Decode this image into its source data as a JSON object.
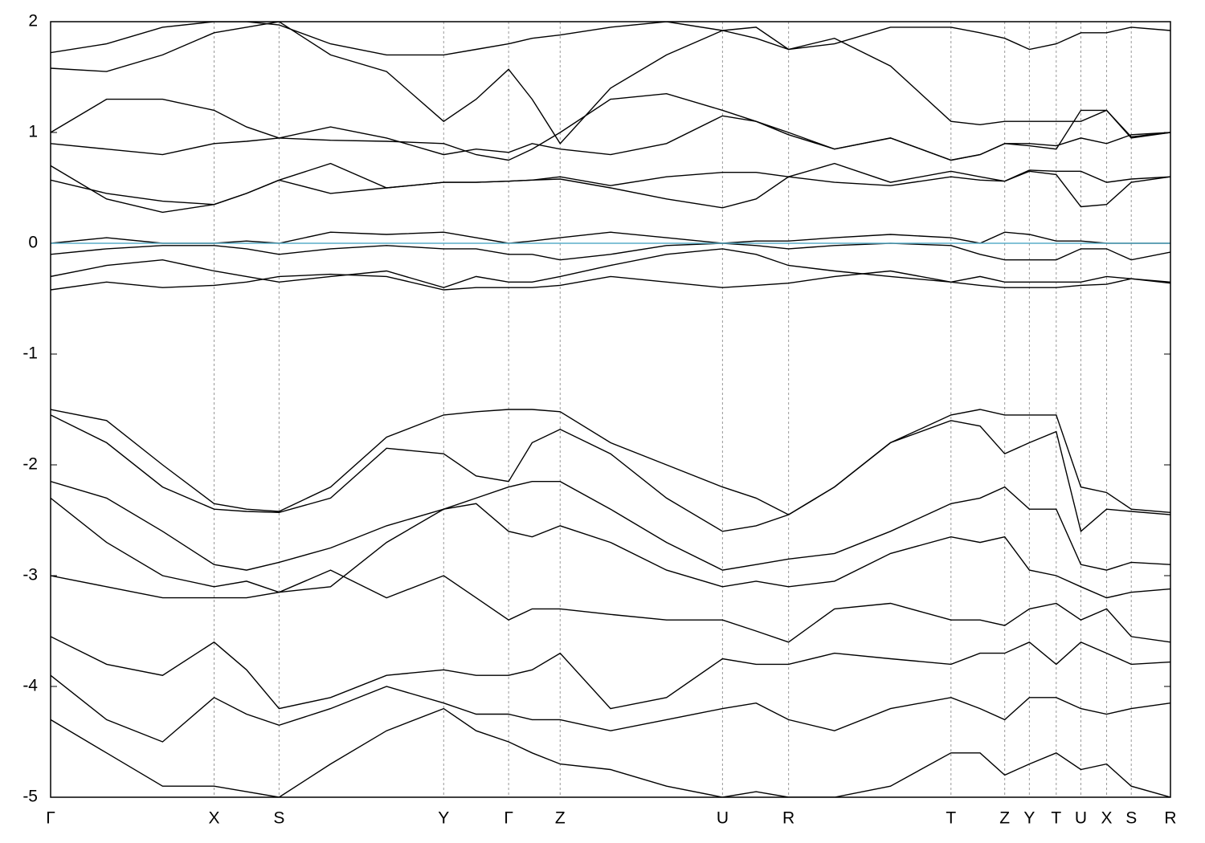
{
  "chart_data": {
    "type": "line",
    "xlim": [
      0,
      1
    ],
    "ylim": [
      -5,
      2
    ],
    "yticks": [
      2,
      1,
      0,
      -1,
      -2,
      -3,
      -4,
      -5
    ],
    "xticks": [
      {
        "value": 0,
        "label": "Γ"
      },
      {
        "value": 0.146,
        "label": "X"
      },
      {
        "value": 0.204,
        "label": "S"
      },
      {
        "value": 0.351,
        "label": "Y"
      },
      {
        "value": 0.409,
        "label": "Γ"
      },
      {
        "value": 0.455,
        "label": "Z"
      },
      {
        "value": 0.6,
        "label": "U"
      },
      {
        "value": 0.659,
        "label": "R"
      },
      {
        "value": 0.804,
        "label": "T"
      },
      {
        "value": 0.852,
        "label": "Z"
      },
      {
        "value": 0.874,
        "label": "Y"
      },
      {
        "value": 0.898,
        "label": "T"
      },
      {
        "value": 0.92,
        "label": "U"
      },
      {
        "value": 0.943,
        "label": "X"
      },
      {
        "value": 0.965,
        "label": "S"
      },
      {
        "value": 1,
        "label": "R"
      }
    ],
    "grid": true,
    "reference_line": {
      "value": 0,
      "color": "#5aaec8"
    },
    "x": [
      0,
      0.05,
      0.1,
      0.146,
      0.175,
      0.204,
      0.25,
      0.3,
      0.351,
      0.38,
      0.409,
      0.43,
      0.455,
      0.5,
      0.55,
      0.6,
      0.63,
      0.659,
      0.7,
      0.75,
      0.804,
      0.83,
      0.852,
      0.874,
      0.898,
      0.92,
      0.943,
      0.965,
      1
    ],
    "series": [
      {
        "color": "#000000",
        "values": [
          0.57,
          0.45,
          0.38,
          0.35,
          0.45,
          0.57,
          0.72,
          0.5,
          0.55,
          0.55,
          0.56,
          0.57,
          0.6,
          0.52,
          0.6,
          0.64,
          0.64,
          0.6,
          0.55,
          0.52,
          0.6,
          0.57,
          0.56,
          0.65,
          0.62,
          0.33,
          0.35,
          0.55,
          0.6
        ]
      },
      {
        "color": "#000000",
        "values": [
          0.7,
          0.4,
          0.28,
          0.35,
          0.45,
          0.57,
          0.45,
          0.5,
          0.55,
          0.55,
          0.56,
          0.57,
          0.58,
          0.5,
          0.4,
          0.32,
          0.4,
          0.6,
          0.72,
          0.55,
          0.65,
          0.6,
          0.56,
          0.66,
          0.65,
          0.65,
          0.55,
          0.58,
          0.6
        ]
      },
      {
        "color": "#000000",
        "values": [
          0.9,
          0.85,
          0.8,
          0.9,
          0.92,
          0.95,
          1.05,
          0.95,
          0.8,
          0.85,
          0.82,
          0.9,
          0.85,
          0.8,
          0.9,
          1.15,
          1.1,
          1.0,
          0.85,
          0.95,
          0.75,
          0.8,
          0.9,
          0.9,
          0.88,
          0.95,
          0.9,
          0.98,
          1.0
        ]
      },
      {
        "color": "#000000",
        "values": [
          1.0,
          1.3,
          1.3,
          1.2,
          1.05,
          0.95,
          0.93,
          0.92,
          0.9,
          0.8,
          0.75,
          0.85,
          1.0,
          1.3,
          1.35,
          1.2,
          1.1,
          0.98,
          0.85,
          0.95,
          0.75,
          0.8,
          0.9,
          0.88,
          0.85,
          1.2,
          1.2,
          0.96,
          1.0
        ]
      },
      {
        "color": "#000000",
        "values": [
          1.58,
          1.55,
          1.7,
          1.9,
          1.95,
          2.0,
          1.7,
          1.55,
          1.1,
          1.3,
          1.57,
          1.3,
          0.9,
          1.4,
          1.7,
          1.92,
          1.85,
          1.75,
          1.85,
          1.6,
          1.1,
          1.07,
          1.1,
          1.1,
          1.1,
          1.1,
          1.2,
          0.95,
          1.0
        ]
      },
      {
        "color": "#000000",
        "values": [
          1.72,
          1.8,
          1.95,
          2.0,
          2.0,
          1.97,
          1.8,
          1.7,
          1.7,
          1.75,
          1.8,
          1.85,
          1.88,
          1.95,
          2.0,
          1.92,
          1.95,
          1.75,
          1.8,
          1.95,
          1.95,
          1.9,
          1.85,
          1.75,
          1.8,
          1.9,
          1.9,
          1.95,
          1.92
        ]
      },
      {
        "color": "#000000",
        "values": [
          0.0,
          0.05,
          0.0,
          0.0,
          0.02,
          0.0,
          0.1,
          0.08,
          0.1,
          0.05,
          0.0,
          0.02,
          0.05,
          0.1,
          0.05,
          0.0,
          0.02,
          0.02,
          0.05,
          0.08,
          0.05,
          0.0,
          0.1,
          0.08,
          0.02,
          0.02,
          0.0,
          0.0,
          0.0
        ]
      },
      {
        "color": "#000000",
        "values": [
          -0.1,
          -0.05,
          -0.02,
          -0.02,
          -0.05,
          -0.1,
          -0.05,
          -0.02,
          -0.05,
          -0.05,
          -0.1,
          -0.1,
          -0.15,
          -0.1,
          -0.02,
          0.0,
          -0.02,
          -0.05,
          -0.02,
          0.0,
          -0.02,
          -0.1,
          -0.15,
          -0.15,
          -0.15,
          -0.05,
          -0.05,
          -0.15,
          -0.08
        ]
      },
      {
        "color": "#000000",
        "values": [
          -0.3,
          -0.2,
          -0.15,
          -0.25,
          -0.3,
          -0.35,
          -0.3,
          -0.25,
          -0.4,
          -0.3,
          -0.35,
          -0.35,
          -0.3,
          -0.2,
          -0.1,
          -0.05,
          -0.1,
          -0.2,
          -0.25,
          -0.3,
          -0.35,
          -0.3,
          -0.35,
          -0.35,
          -0.35,
          -0.35,
          -0.3,
          -0.32,
          -0.35
        ]
      },
      {
        "color": "#000000",
        "values": [
          -0.42,
          -0.35,
          -0.4,
          -0.38,
          -0.35,
          -0.3,
          -0.28,
          -0.3,
          -0.42,
          -0.4,
          -0.4,
          -0.4,
          -0.38,
          -0.3,
          -0.35,
          -0.4,
          -0.38,
          -0.36,
          -0.3,
          -0.25,
          -0.35,
          -0.38,
          -0.4,
          -0.4,
          -0.4,
          -0.38,
          -0.37,
          -0.32,
          -0.36
        ]
      },
      {
        "color": "#000000",
        "values": [
          -1.5,
          -1.6,
          -2.0,
          -2.35,
          -2.4,
          -2.42,
          -2.2,
          -1.75,
          -1.55,
          -1.52,
          -1.5,
          -1.5,
          -1.52,
          -1.8,
          -2.0,
          -2.2,
          -2.3,
          -2.45,
          -2.2,
          -1.8,
          -1.55,
          -1.5,
          -1.55,
          -1.55,
          -1.55,
          -2.2,
          -2.25,
          -2.4,
          -2.43
        ]
      },
      {
        "color": "#000000",
        "values": [
          -1.55,
          -1.8,
          -2.2,
          -2.4,
          -2.42,
          -2.43,
          -2.3,
          -1.85,
          -1.9,
          -2.1,
          -2.15,
          -1.8,
          -1.68,
          -1.9,
          -2.3,
          -2.6,
          -2.55,
          -2.45,
          -2.2,
          -1.8,
          -1.6,
          -1.65,
          -1.9,
          -1.8,
          -1.7,
          -2.6,
          -2.4,
          -2.42,
          -2.45
        ]
      },
      {
        "color": "#000000",
        "values": [
          -2.15,
          -2.3,
          -2.6,
          -2.9,
          -2.95,
          -2.88,
          -2.75,
          -2.55,
          -2.4,
          -2.3,
          -2.2,
          -2.15,
          -2.15,
          -2.4,
          -2.7,
          -2.95,
          -2.9,
          -2.85,
          -2.8,
          -2.6,
          -2.35,
          -2.3,
          -2.2,
          -2.4,
          -2.4,
          -2.9,
          -2.95,
          -2.88,
          -2.9
        ]
      },
      {
        "color": "#000000",
        "values": [
          -2.3,
          -2.7,
          -3.0,
          -3.1,
          -3.05,
          -3.15,
          -3.1,
          -2.7,
          -2.4,
          -2.35,
          -2.6,
          -2.65,
          -2.55,
          -2.7,
          -2.95,
          -3.1,
          -3.05,
          -3.1,
          -3.05,
          -2.8,
          -2.65,
          -2.7,
          -2.65,
          -2.95,
          -3.0,
          -3.1,
          -3.2,
          -3.15,
          -3.12
        ]
      },
      {
        "color": "#000000",
        "values": [
          -3.0,
          -3.1,
          -3.2,
          -3.2,
          -3.2,
          -3.15,
          -2.95,
          -3.2,
          -3.0,
          -3.2,
          -3.4,
          -3.3,
          -3.3,
          -3.35,
          -3.4,
          -3.4,
          -3.5,
          -3.6,
          -3.3,
          -3.25,
          -3.4,
          -3.4,
          -3.45,
          -3.3,
          -3.25,
          -3.4,
          -3.3,
          -3.55,
          -3.6
        ]
      },
      {
        "color": "#000000",
        "values": [
          -3.55,
          -3.8,
          -3.9,
          -3.6,
          -3.85,
          -4.2,
          -4.1,
          -3.9,
          -3.85,
          -3.9,
          -3.9,
          -3.85,
          -3.7,
          -4.2,
          -4.1,
          -3.75,
          -3.8,
          -3.8,
          -3.7,
          -3.75,
          -3.8,
          -3.7,
          -3.7,
          -3.6,
          -3.8,
          -3.6,
          -3.7,
          -3.8,
          -3.78
        ]
      },
      {
        "color": "#000000",
        "values": [
          -3.9,
          -4.3,
          -4.5,
          -4.1,
          -4.25,
          -4.35,
          -4.2,
          -4.0,
          -4.15,
          -4.25,
          -4.25,
          -4.3,
          -4.3,
          -4.4,
          -4.3,
          -4.2,
          -4.15,
          -4.3,
          -4.4,
          -4.2,
          -4.1,
          -4.2,
          -4.3,
          -4.1,
          -4.1,
          -4.2,
          -4.25,
          -4.2,
          -4.15
        ]
      },
      {
        "color": "#000000",
        "values": [
          -4.3,
          -4.6,
          -4.9,
          -4.9,
          -4.95,
          -5.0,
          -4.7,
          -4.4,
          -4.2,
          -4.4,
          -4.5,
          -4.6,
          -4.7,
          -4.75,
          -4.9,
          -5.0,
          -4.95,
          -5.0,
          -5.0,
          -4.9,
          -4.6,
          -4.6,
          -4.8,
          -4.7,
          -4.6,
          -4.75,
          -4.7,
          -4.9,
          -5.0
        ]
      }
    ]
  }
}
